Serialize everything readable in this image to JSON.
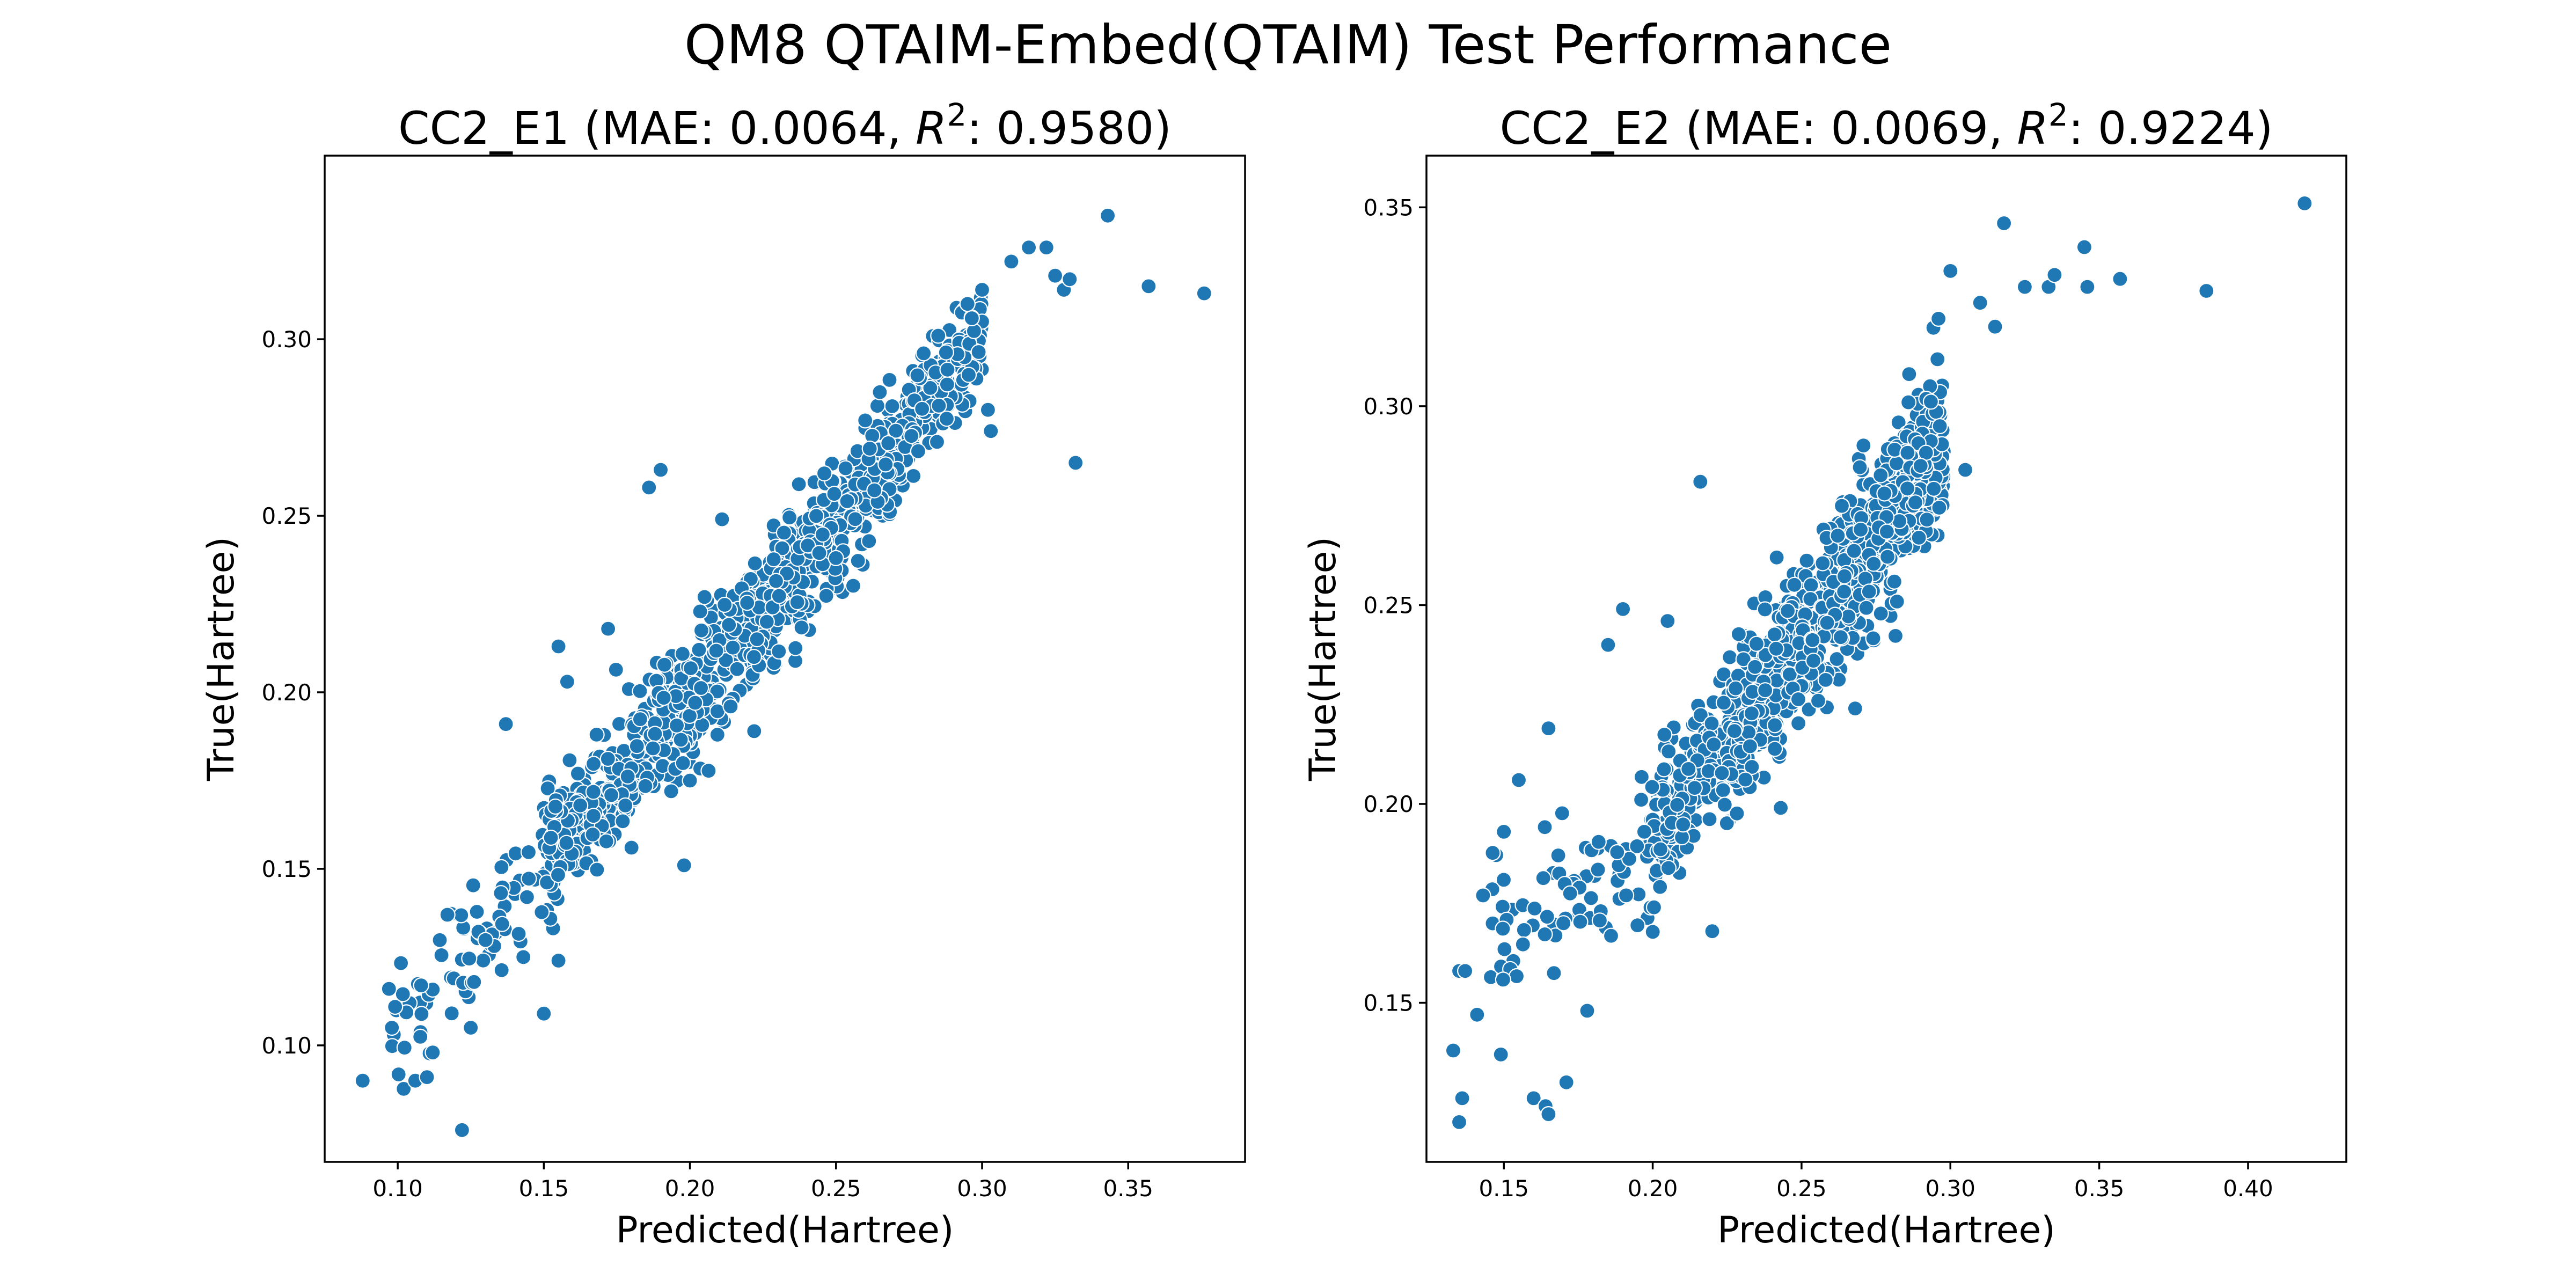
{
  "figure": {
    "title": "QM8 QTAIM-Embed(QTAIM) Test Performance"
  },
  "chart_data": [
    {
      "type": "scatter",
      "title_prefix": "CC2_E1 (MAE: 0.0064, ",
      "title_r2_label": "R",
      "title_r2_sup": "2",
      "title_suffix": ": 0.9580)",
      "xlabel": "Predicted(Hartree)",
      "ylabel": "True(Hartree)",
      "xlim": [
        0.075,
        0.39
      ],
      "ylim": [
        0.067,
        0.352
      ],
      "xticks": [
        0.1,
        0.15,
        0.2,
        0.25,
        0.3,
        0.35
      ],
      "xtick_labels": [
        "0.10",
        "0.15",
        "0.20",
        "0.25",
        "0.30",
        "0.35"
      ],
      "yticks": [
        0.1,
        0.15,
        0.2,
        0.25,
        0.3
      ],
      "ytick_labels": [
        "0.10",
        "0.15",
        "0.20",
        "0.25",
        "0.30"
      ],
      "marker_color": "#1f77b4",
      "outliers": [
        [
          0.088,
          0.09
        ],
        [
          0.097,
          0.116
        ],
        [
          0.098,
          0.105
        ],
        [
          0.106,
          0.09
        ],
        [
          0.108,
          0.117
        ],
        [
          0.11,
          0.091
        ],
        [
          0.122,
          0.076
        ],
        [
          0.117,
          0.137
        ],
        [
          0.125,
          0.105
        ],
        [
          0.137,
          0.191
        ],
        [
          0.15,
          0.109
        ],
        [
          0.155,
          0.213
        ],
        [
          0.155,
          0.124
        ],
        [
          0.158,
          0.203
        ],
        [
          0.172,
          0.218
        ],
        [
          0.186,
          0.258
        ],
        [
          0.19,
          0.263
        ],
        [
          0.198,
          0.151
        ],
        [
          0.211,
          0.249
        ],
        [
          0.222,
          0.189
        ],
        [
          0.205,
          0.227
        ],
        [
          0.167,
          0.165
        ],
        [
          0.18,
          0.156
        ],
        [
          0.143,
          0.125
        ],
        [
          0.112,
          0.098
        ],
        [
          0.302,
          0.28
        ],
        [
          0.303,
          0.274
        ],
        [
          0.316,
          0.326
        ],
        [
          0.322,
          0.326
        ],
        [
          0.325,
          0.318
        ],
        [
          0.328,
          0.314
        ],
        [
          0.33,
          0.317
        ],
        [
          0.332,
          0.265
        ],
        [
          0.343,
          0.335
        ],
        [
          0.357,
          0.315
        ],
        [
          0.376,
          0.313
        ],
        [
          0.3,
          0.314
        ],
        [
          0.295,
          0.31
        ],
        [
          0.285,
          0.301
        ],
        [
          0.28,
          0.296
        ],
        [
          0.31,
          0.322
        ],
        [
          0.265,
          0.285
        ],
        [
          0.26,
          0.277
        ],
        [
          0.246,
          0.262
        ],
        [
          0.2,
          0.175
        ]
      ],
      "band": {
        "segments": [
          [
            0.098,
            0.105,
            0.06
          ],
          [
            0.15,
            0.15,
            0.33
          ],
          [
            0.2,
            0.199,
            0.4
          ],
          [
            0.255,
            0.252,
            0.24
          ],
          [
            0.3,
            0.302,
            0.04
          ]
        ],
        "count": 1170,
        "slope": 1.0,
        "intercept": 0.0,
        "sd": 0.0085,
        "seed": 11
      }
    },
    {
      "type": "scatter",
      "title_prefix": "CC2_E2 (MAE: 0.0069, ",
      "title_r2_label": "R",
      "title_r2_sup": "2",
      "title_suffix": ": 0.9224)",
      "xlabel": "Predicted(Hartree)",
      "ylabel": "True(Hartree)",
      "xlim": [
        0.124,
        0.433
      ],
      "ylim": [
        0.11,
        0.363
      ],
      "xticks": [
        0.15,
        0.2,
        0.25,
        0.3,
        0.35,
        0.4
      ],
      "xtick_labels": [
        "0.15",
        "0.20",
        "0.25",
        "0.30",
        "0.35",
        "0.40"
      ],
      "yticks": [
        0.15,
        0.2,
        0.25,
        0.3,
        0.35
      ],
      "ytick_labels": [
        "0.15",
        "0.20",
        "0.25",
        "0.30",
        "0.35"
      ],
      "marker_color": "#1f77b4",
      "outliers": [
        [
          0.133,
          0.138
        ],
        [
          0.135,
          0.12
        ],
        [
          0.136,
          0.126
        ],
        [
          0.135,
          0.158
        ],
        [
          0.137,
          0.158
        ],
        [
          0.141,
          0.147
        ],
        [
          0.143,
          0.177
        ],
        [
          0.149,
          0.137
        ],
        [
          0.15,
          0.193
        ],
        [
          0.155,
          0.206
        ],
        [
          0.16,
          0.126
        ],
        [
          0.164,
          0.124
        ],
        [
          0.165,
          0.122
        ],
        [
          0.165,
          0.219
        ],
        [
          0.171,
          0.13
        ],
        [
          0.178,
          0.148
        ],
        [
          0.185,
          0.24
        ],
        [
          0.19,
          0.249
        ],
        [
          0.205,
          0.246
        ],
        [
          0.216,
          0.281
        ],
        [
          0.22,
          0.168
        ],
        [
          0.243,
          0.199
        ],
        [
          0.254,
          0.236
        ],
        [
          0.268,
          0.224
        ],
        [
          0.29,
          0.285
        ],
        [
          0.305,
          0.284
        ],
        [
          0.315,
          0.32
        ],
        [
          0.318,
          0.346
        ],
        [
          0.325,
          0.33
        ],
        [
          0.333,
          0.33
        ],
        [
          0.335,
          0.333
        ],
        [
          0.345,
          0.34
        ],
        [
          0.346,
          0.33
        ],
        [
          0.357,
          0.332
        ],
        [
          0.386,
          0.329
        ],
        [
          0.419,
          0.351
        ],
        [
          0.3,
          0.334
        ],
        [
          0.31,
          0.326
        ],
        [
          0.296,
          0.322
        ],
        [
          0.17,
          0.17
        ]
      ],
      "band": {
        "segments": [
          [
            0.145,
            0.163,
            0.07
          ],
          [
            0.198,
            0.19,
            0.13
          ],
          [
            0.225,
            0.215,
            0.33
          ],
          [
            0.262,
            0.254,
            0.31
          ],
          [
            0.298,
            0.291,
            0.16
          ]
        ],
        "count": 1150,
        "slope": 1.0,
        "intercept": -0.005,
        "sd": 0.0095,
        "seed": 29
      }
    }
  ]
}
